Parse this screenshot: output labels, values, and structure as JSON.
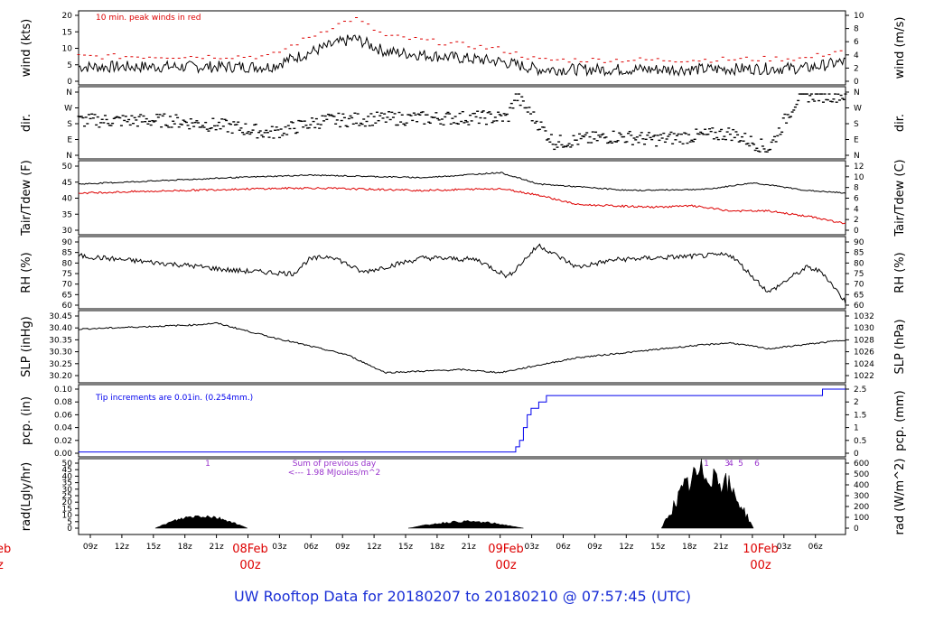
{
  "title": "UW Rooftop Data for 20180207  to  20180210 @ 07:57:45  (UTC)",
  "time_axis": {
    "ticks": [
      "09z",
      "12z",
      "15z",
      "18z",
      "21z",
      "03z",
      "06z",
      "09z",
      "12z",
      "15z",
      "18z",
      "21z",
      "03z",
      "06z",
      "09z",
      "12z",
      "15z",
      "18z",
      "21z",
      "03z",
      "06z"
    ],
    "day_labels": [
      {
        "date": "08Feb",
        "hour": "00z"
      },
      {
        "date": "09Feb",
        "hour": "00z"
      },
      {
        "date": "10Feb",
        "hour": "00z"
      }
    ],
    "cut_day_label": {
      "date": "eb",
      "hour": "z"
    }
  },
  "chart_data": [
    {
      "type": "line",
      "panel": "wind",
      "ylabel_left": "wind (kts)",
      "ylabel_right": "wind (m/s)",
      "yticks_left": [
        "0",
        "5",
        "10",
        "15",
        "20"
      ],
      "ylim_left": [
        0,
        20
      ],
      "yticks_right": [
        "0",
        "2",
        "4",
        "6",
        "8",
        "10"
      ],
      "annotation": "10 min. peak winds in red",
      "series": [
        {
          "color": "#000000"
        },
        {
          "color": "#dd0000"
        }
      ]
    },
    {
      "type": "scatter",
      "panel": "dir",
      "ylabel_left": "dir.",
      "ylabel_right": "dir.",
      "yticks_left": [
        "N",
        "E",
        "S",
        "W",
        "N"
      ],
      "yticks_right": [
        "N",
        "E",
        "S",
        "W",
        "N"
      ]
    },
    {
      "type": "line",
      "panel": "temp",
      "ylabel_left": "Tair/Tdew (F)",
      "ylabel_right": "Tair/Tdew (C)",
      "yticks_left": [
        "30",
        "35",
        "40",
        "45",
        "50"
      ],
      "ylim_left": [
        30,
        55
      ],
      "yticks_right": [
        "0",
        "2",
        "4",
        "6",
        "8",
        "10",
        "12"
      ],
      "series": [
        {
          "color": "#000000"
        },
        {
          "color": "#dd0000"
        }
      ]
    },
    {
      "type": "line",
      "panel": "rh",
      "ylabel_left": "RH (%)",
      "ylabel_right": "RH (%)",
      "yticks_left": [
        "60",
        "65",
        "70",
        "75",
        "80",
        "85",
        "90"
      ],
      "ylim_left": [
        60,
        92
      ],
      "yticks_right": [
        "60",
        "65",
        "70",
        "75",
        "80",
        "85",
        "90"
      ]
    },
    {
      "type": "line",
      "panel": "slp",
      "ylabel_left": "SLP (inHg)",
      "ylabel_right": "SLP (hPa)",
      "yticks_left": [
        "30.20",
        "30.25",
        "30.30",
        "30.35",
        "30.40",
        "30.45"
      ],
      "ylim_left": [
        30.18,
        30.48
      ],
      "yticks_right": [
        "1022",
        "1024",
        "1026",
        "1028",
        "1030",
        "1032"
      ]
    },
    {
      "type": "line",
      "panel": "pcp",
      "ylabel_left": "pcp. (in)",
      "ylabel_right": "pcp. (mm)",
      "yticks_left": [
        "0.00",
        "0.02",
        "0.04",
        "0.06",
        "0.08",
        "0.10"
      ],
      "ylim_left": [
        0,
        0.1
      ],
      "yticks_right": [
        "0",
        "0.5",
        "1",
        "1.5",
        "2",
        "2.5"
      ],
      "annotation": "Tip increments are 0.01in. (0.254mm.)",
      "series": [
        {
          "color": "#0000ee"
        }
      ]
    },
    {
      "type": "area",
      "panel": "rad",
      "ylabel_left": "rad(Lgly/hr)",
      "ylabel_right": "rad (W/m^2)",
      "yticks_left": [
        "0",
        "5",
        "10",
        "15",
        "20",
        "25",
        "30",
        "35",
        "40",
        "45",
        "50"
      ],
      "ylim_left": [
        0,
        55
      ],
      "yticks_right": [
        "0",
        "100",
        "200",
        "300",
        "400",
        "500",
        "600"
      ],
      "annotation_lines": [
        "Sum of previous day",
        "<--- 1.98 MJoules/m^2"
      ],
      "annotation_color": "#9933cc",
      "top_marks": [
        "1",
        "1",
        "3",
        "4",
        "5",
        "6"
      ]
    }
  ]
}
